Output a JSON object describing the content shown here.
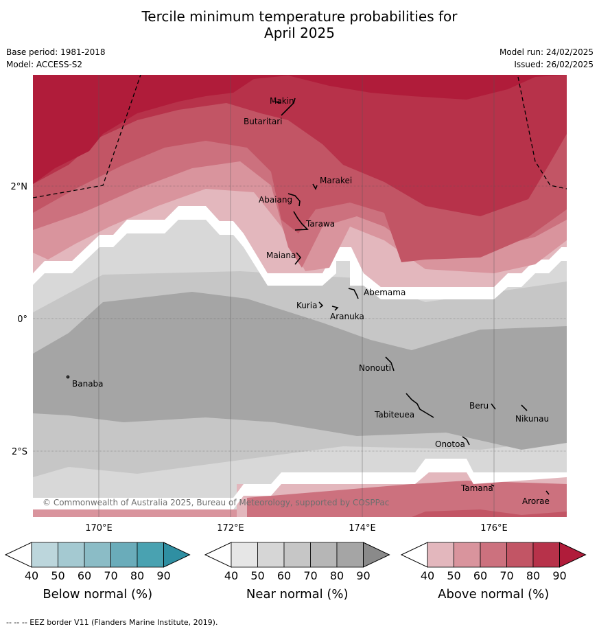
{
  "title_line1": "Tercile minimum temperature probabilities for",
  "title_line2": "April 2025",
  "base_period": "Base period: 1981-2018",
  "model": "Model: ACCESS-S2",
  "model_run": "Model run: 24/02/2025",
  "issued": "Issued: 26/02/2025",
  "axes": {
    "lat_labels": [
      "2°N",
      "0°",
      "2°S"
    ],
    "lon_labels": [
      "170°E",
      "172°E",
      "174°E",
      "176°E"
    ]
  },
  "places": [
    "Makin",
    "Butaritari",
    "Marakei",
    "Abaiang",
    "Tarawa",
    "Maiana",
    "Abemama",
    "Kuria",
    "Aranuka",
    "Banaba",
    "Nonouti",
    "Beru",
    "Tabiteuea",
    "Nikunau",
    "Onotoa",
    "Tamana",
    "Arorae"
  ],
  "copyright": "© Commonwealth of Australia 2025, Bureau of Meteorology, supported by COSPPac",
  "colorbars": [
    {
      "title": "Below normal (%)",
      "ticks": [
        "40",
        "50",
        "60",
        "70",
        "80",
        "90"
      ],
      "colors": [
        "#bcd6dc",
        "#a4c9d1",
        "#8bbcc6",
        "#6aacba",
        "#49a2b1",
        "#2f8fa2"
      ]
    },
    {
      "title": "Near normal (%)",
      "ticks": [
        "40",
        "50",
        "60",
        "70",
        "80",
        "90"
      ],
      "colors": [
        "#e6e6e6",
        "#d6d6d6",
        "#c6c6c6",
        "#b6b6b6",
        "#a5a5a5",
        "#8a8a8a"
      ]
    },
    {
      "title": "Above normal (%)",
      "ticks": [
        "40",
        "50",
        "60",
        "70",
        "80",
        "90"
      ],
      "colors": [
        "#e3b7bd",
        "#d9949d",
        "#cc717e",
        "#c25565",
        "#b7324a",
        "#b01c3a"
      ]
    }
  ],
  "footnote": "--  --  -- EEZ border V11 (Flanders Marine Institute, 2019).",
  "colors": {
    "above_strong": "#b01c3a",
    "near_dark": "#a5a5a5",
    "white_gap": "#ffffff"
  }
}
